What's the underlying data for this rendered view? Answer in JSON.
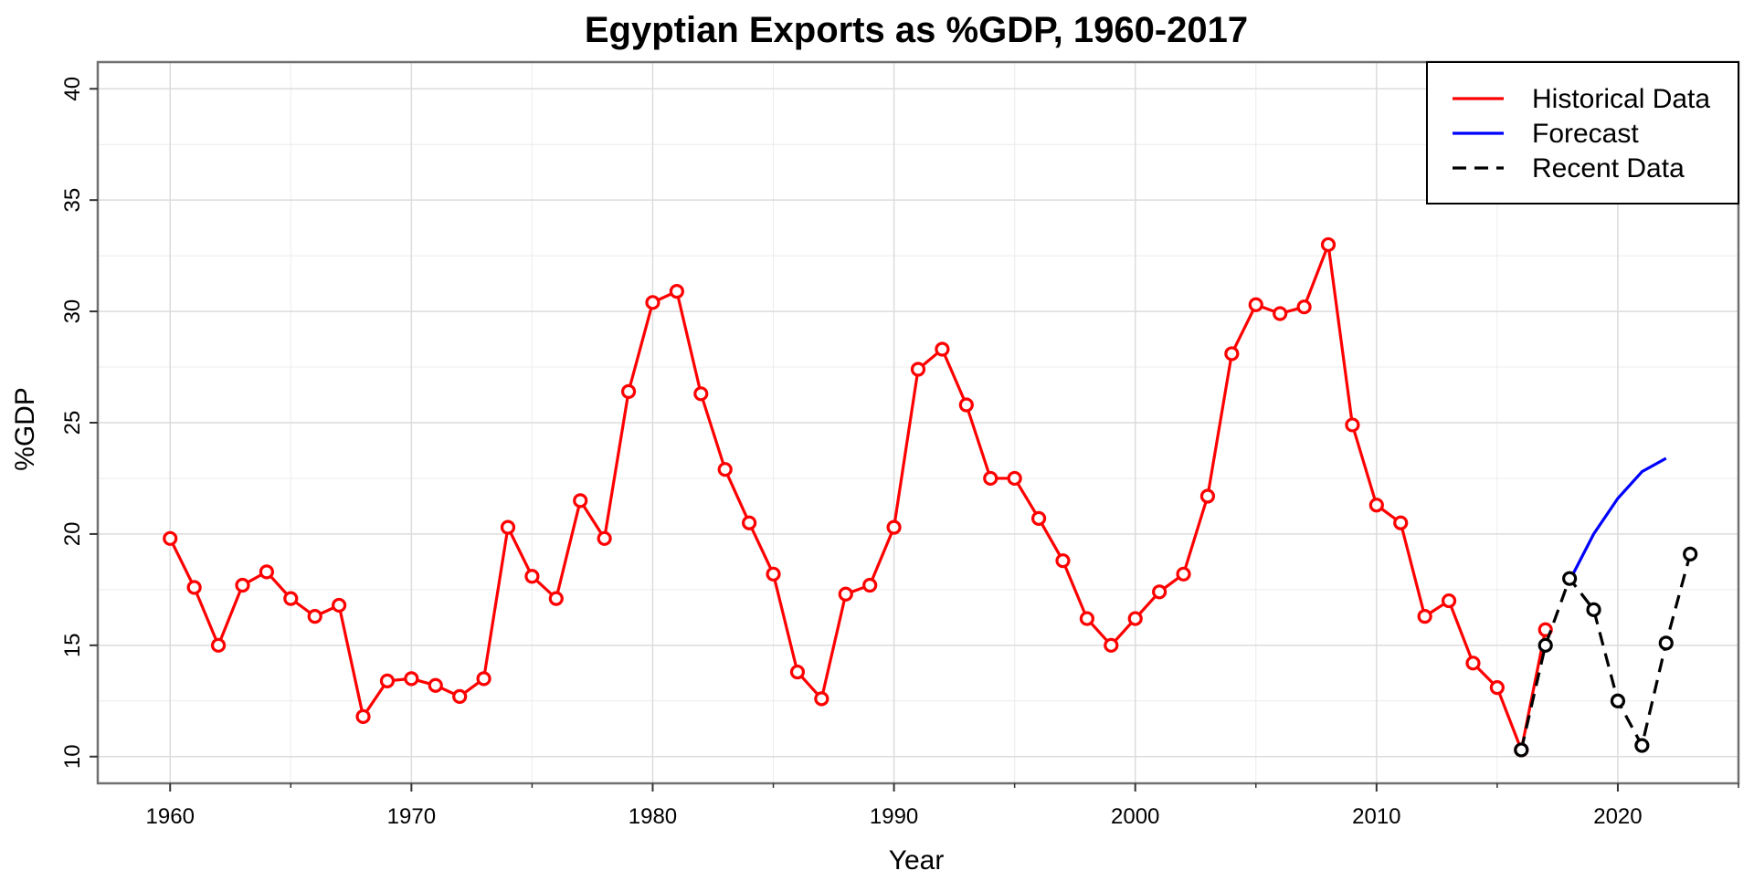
{
  "chart_data": {
    "type": "line",
    "title": "Egyptian Exports as %GDP, 1960-2017",
    "xlabel": "Year",
    "ylabel": "%GDP",
    "xlim": [
      1957,
      2025
    ],
    "ylim": [
      8.8,
      41.2
    ],
    "x_ticks": [
      1960,
      1970,
      1980,
      1990,
      2000,
      2010,
      2020
    ],
    "y_ticks": [
      10,
      15,
      20,
      25,
      30,
      35,
      40
    ],
    "grid": true,
    "legend_position": "top-right",
    "series": [
      {
        "name": "Historical Data",
        "color": "#ff0000",
        "style": "solid",
        "markers": "open-circle",
        "x": [
          1960,
          1961,
          1962,
          1963,
          1964,
          1965,
          1966,
          1967,
          1968,
          1969,
          1970,
          1971,
          1972,
          1973,
          1974,
          1975,
          1976,
          1977,
          1978,
          1979,
          1980,
          1981,
          1982,
          1983,
          1984,
          1985,
          1986,
          1987,
          1988,
          1989,
          1990,
          1991,
          1992,
          1993,
          1994,
          1995,
          1996,
          1997,
          1998,
          1999,
          2000,
          2001,
          2002,
          2003,
          2004,
          2005,
          2006,
          2007,
          2008,
          2009,
          2010,
          2011,
          2012,
          2013,
          2014,
          2015,
          2016,
          2017
        ],
        "y": [
          19.8,
          17.6,
          15.0,
          17.7,
          18.3,
          17.1,
          16.3,
          16.8,
          11.8,
          13.4,
          13.5,
          13.2,
          12.7,
          13.5,
          20.3,
          18.1,
          17.1,
          21.5,
          19.8,
          26.4,
          30.4,
          30.9,
          26.3,
          22.9,
          20.5,
          18.2,
          13.8,
          12.6,
          17.3,
          17.7,
          20.3,
          27.4,
          28.3,
          25.8,
          22.5,
          22.5,
          20.7,
          18.8,
          16.2,
          15.0,
          16.2,
          17.4,
          18.2,
          21.7,
          28.1,
          30.3,
          29.9,
          30.2,
          33.0,
          24.9,
          21.3,
          20.5,
          16.3,
          17.0,
          14.2,
          13.1,
          10.3,
          15.7
        ]
      },
      {
        "name": "Forecast",
        "color": "#0000ff",
        "style": "solid",
        "markers": "none",
        "x": [
          2018,
          2019,
          2020,
          2021,
          2022
        ],
        "y": [
          17.9,
          20.0,
          21.6,
          22.8,
          23.4
        ]
      },
      {
        "name": "Recent Data",
        "color": "#000000",
        "style": "dashed",
        "markers": "open-circle",
        "x": [
          2016,
          2017,
          2018,
          2019,
          2020,
          2021,
          2022,
          2023
        ],
        "y": [
          10.3,
          15.0,
          18.0,
          16.6,
          12.5,
          10.5,
          15.1,
          19.1
        ]
      }
    ]
  }
}
